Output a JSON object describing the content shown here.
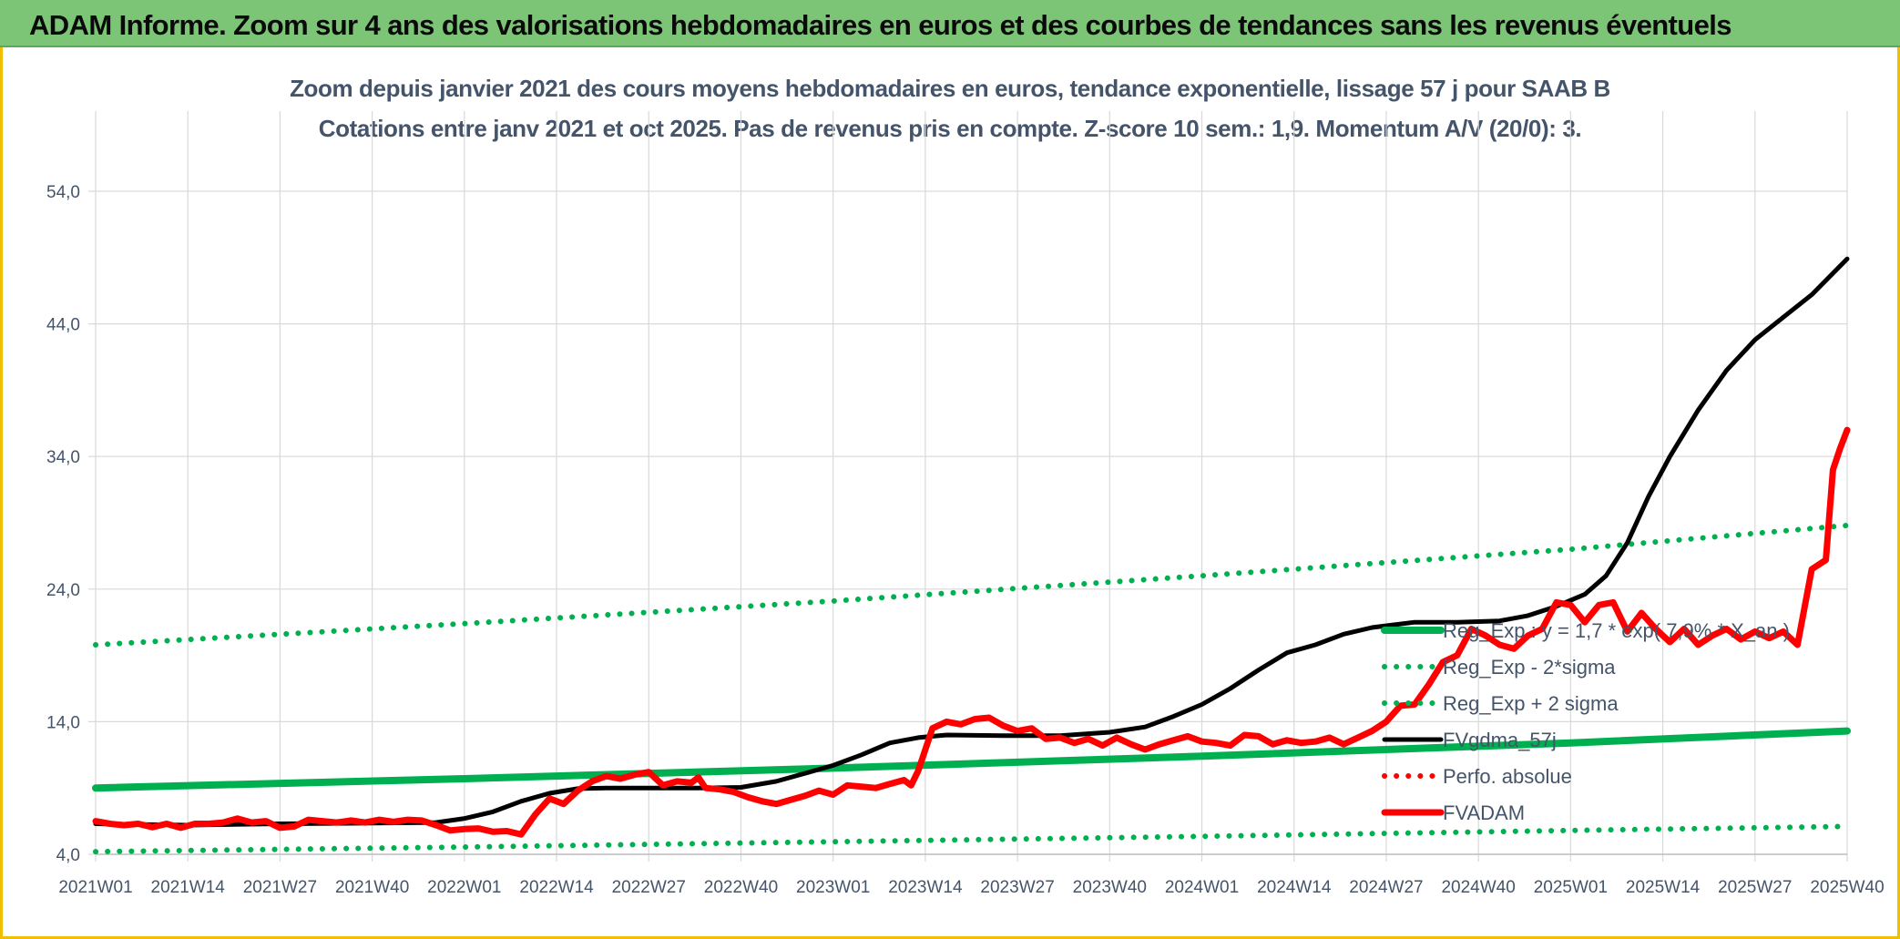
{
  "header": {
    "title": "ADAM Informe. Zoom sur 4 ans des valorisations hebdomadaires en euros et des courbes de tendances sans les revenus éventuels"
  },
  "colors": {
    "banner": "#7cc576",
    "frame": "#f0c000",
    "trend": "#00b050",
    "price": "#ff0000",
    "smooth": "#000000",
    "title_text": "#44546a",
    "grid": "#d9d9d9"
  },
  "chart_data": {
    "type": "line",
    "title": "Zoom depuis janvier 2021 des cours moyens hebdomadaires en euros, tendance exponentielle, lissage 57 j pour SAAB B",
    "subtitle": "Cotations entre janv 2021 et oct 2025. Pas de revenus pris en compte. Z-score 10 sem.: 1,9. Momentum A/V (20/0): 3.",
    "xlabel": "",
    "ylabel": "",
    "x_ticks": [
      "2021W01",
      "2021W14",
      "2021W27",
      "2021W40",
      "2022W01",
      "2022W14",
      "2022W27",
      "2022W40",
      "2023W01",
      "2023W14",
      "2023W27",
      "2023W40",
      "2024W01",
      "2024W14",
      "2024W27",
      "2024W40",
      "2025W01",
      "2025W14",
      "2025W27",
      "2025W40"
    ],
    "y_ticks": [
      "4,0",
      "14,0",
      "24,0",
      "34,0",
      "44,0",
      "54,0"
    ],
    "ylim": [
      4,
      54
    ],
    "x_range_weeks": [
      0,
      247
    ],
    "grid": true,
    "legend_position": "right-inside",
    "series": [
      {
        "name": "Reg_Exp : y = 1,7 * exp( 7,9% *  X_an )",
        "style": "solid-thick",
        "color": "#00b050",
        "points": [
          [
            0,
            9.0
          ],
          [
            52,
            9.7
          ],
          [
            104,
            10.5
          ],
          [
            156,
            11.4
          ],
          [
            208,
            12.4
          ],
          [
            247,
            13.3
          ]
        ]
      },
      {
        "name": "Reg_Exp - 2*sigma",
        "style": "dotted",
        "color": "#00b050",
        "points": [
          [
            0,
            4.2
          ],
          [
            52,
            4.55
          ],
          [
            104,
            4.95
          ],
          [
            156,
            5.35
          ],
          [
            208,
            5.8
          ],
          [
            247,
            6.1
          ]
        ]
      },
      {
        "name": "Reg_Exp + 2 sigma",
        "style": "dotted",
        "color": "#00b050",
        "points": [
          [
            0,
            19.8
          ],
          [
            52,
            21.4
          ],
          [
            104,
            23.1
          ],
          [
            156,
            25.0
          ],
          [
            208,
            27.0
          ],
          [
            247,
            28.8
          ]
        ]
      },
      {
        "name": "FVgdma_57j",
        "style": "solid",
        "color": "#000000",
        "points": [
          [
            0,
            6.3
          ],
          [
            13,
            6.2
          ],
          [
            26,
            6.3
          ],
          [
            39,
            6.35
          ],
          [
            48,
            6.4
          ],
          [
            52,
            6.7
          ],
          [
            56,
            7.2
          ],
          [
            60,
            8.0
          ],
          [
            64,
            8.6
          ],
          [
            68,
            8.95
          ],
          [
            72,
            9.0
          ],
          [
            78,
            9.0
          ],
          [
            85,
            9.0
          ],
          [
            91,
            9.05
          ],
          [
            96,
            9.5
          ],
          [
            100,
            10.1
          ],
          [
            104,
            10.7
          ],
          [
            108,
            11.5
          ],
          [
            112,
            12.4
          ],
          [
            116,
            12.8
          ],
          [
            120,
            13.0
          ],
          [
            128,
            12.95
          ],
          [
            136,
            12.95
          ],
          [
            143,
            13.2
          ],
          [
            148,
            13.6
          ],
          [
            152,
            14.4
          ],
          [
            156,
            15.3
          ],
          [
            160,
            16.5
          ],
          [
            164,
            17.9
          ],
          [
            168,
            19.2
          ],
          [
            172,
            19.8
          ],
          [
            176,
            20.6
          ],
          [
            180,
            21.1
          ],
          [
            186,
            21.5
          ],
          [
            192,
            21.5
          ],
          [
            198,
            21.6
          ],
          [
            202,
            22.0
          ],
          [
            206,
            22.7
          ],
          [
            210,
            23.6
          ],
          [
            213,
            25.0
          ],
          [
            216,
            27.5
          ],
          [
            219,
            31.0
          ],
          [
            222,
            34.0
          ],
          [
            226,
            37.5
          ],
          [
            230,
            40.5
          ],
          [
            234,
            42.8
          ],
          [
            238,
            44.5
          ],
          [
            242,
            46.2
          ],
          [
            247,
            48.9
          ]
        ]
      },
      {
        "name": "Perfo. absolue",
        "style": "dotted",
        "color": "#ff0000",
        "points": []
      },
      {
        "name": "FVADAM",
        "style": "solid-thick",
        "color": "#ff0000",
        "points": [
          [
            0,
            6.5
          ],
          [
            2,
            6.3
          ],
          [
            4,
            6.2
          ],
          [
            6,
            6.3
          ],
          [
            8,
            6.05
          ],
          [
            10,
            6.3
          ],
          [
            12,
            6.0
          ],
          [
            14,
            6.3
          ],
          [
            16,
            6.3
          ],
          [
            18,
            6.4
          ],
          [
            20,
            6.7
          ],
          [
            22,
            6.4
          ],
          [
            24,
            6.5
          ],
          [
            26,
            6.0
          ],
          [
            28,
            6.1
          ],
          [
            30,
            6.6
          ],
          [
            32,
            6.5
          ],
          [
            34,
            6.4
          ],
          [
            36,
            6.55
          ],
          [
            38,
            6.4
          ],
          [
            40,
            6.6
          ],
          [
            42,
            6.45
          ],
          [
            44,
            6.6
          ],
          [
            46,
            6.55
          ],
          [
            48,
            6.2
          ],
          [
            50,
            5.8
          ],
          [
            52,
            5.9
          ],
          [
            54,
            5.95
          ],
          [
            56,
            5.7
          ],
          [
            58,
            5.75
          ],
          [
            60,
            5.5
          ],
          [
            62,
            7.0
          ],
          [
            64,
            8.2
          ],
          [
            66,
            7.8
          ],
          [
            68,
            8.8
          ],
          [
            70,
            9.5
          ],
          [
            72,
            9.9
          ],
          [
            74,
            9.7
          ],
          [
            76,
            10.0
          ],
          [
            78,
            10.2
          ],
          [
            80,
            9.2
          ],
          [
            82,
            9.5
          ],
          [
            84,
            9.4
          ],
          [
            85,
            9.8
          ],
          [
            86,
            9.0
          ],
          [
            88,
            8.9
          ],
          [
            90,
            8.7
          ],
          [
            92,
            8.3
          ],
          [
            94,
            8.0
          ],
          [
            96,
            7.8
          ],
          [
            98,
            8.1
          ],
          [
            100,
            8.4
          ],
          [
            102,
            8.8
          ],
          [
            104,
            8.5
          ],
          [
            106,
            9.2
          ],
          [
            108,
            9.1
          ],
          [
            110,
            9.0
          ],
          [
            112,
            9.3
          ],
          [
            114,
            9.6
          ],
          [
            115,
            9.2
          ],
          [
            116,
            10.3
          ],
          [
            118,
            13.5
          ],
          [
            120,
            14.0
          ],
          [
            122,
            13.8
          ],
          [
            124,
            14.2
          ],
          [
            126,
            14.3
          ],
          [
            128,
            13.7
          ],
          [
            130,
            13.3
          ],
          [
            132,
            13.5
          ],
          [
            134,
            12.7
          ],
          [
            136,
            12.8
          ],
          [
            138,
            12.4
          ],
          [
            140,
            12.7
          ],
          [
            142,
            12.2
          ],
          [
            144,
            12.8
          ],
          [
            146,
            12.3
          ],
          [
            148,
            11.9
          ],
          [
            150,
            12.3
          ],
          [
            152,
            12.6
          ],
          [
            154,
            12.9
          ],
          [
            156,
            12.5
          ],
          [
            158,
            12.4
          ],
          [
            160,
            12.2
          ],
          [
            162,
            13.0
          ],
          [
            164,
            12.9
          ],
          [
            166,
            12.3
          ],
          [
            168,
            12.6
          ],
          [
            170,
            12.4
          ],
          [
            172,
            12.5
          ],
          [
            174,
            12.8
          ],
          [
            176,
            12.3
          ],
          [
            178,
            12.8
          ],
          [
            180,
            13.3
          ],
          [
            182,
            14.0
          ],
          [
            184,
            15.2
          ],
          [
            186,
            15.3
          ],
          [
            188,
            16.8
          ],
          [
            190,
            18.5
          ],
          [
            192,
            19.0
          ],
          [
            194,
            21.0
          ],
          [
            196,
            20.5
          ],
          [
            198,
            19.8
          ],
          [
            200,
            19.5
          ],
          [
            202,
            20.5
          ],
          [
            204,
            21.0
          ],
          [
            206,
            23.0
          ],
          [
            208,
            22.8
          ],
          [
            210,
            21.5
          ],
          [
            212,
            22.8
          ],
          [
            214,
            23.0
          ],
          [
            216,
            20.8
          ],
          [
            218,
            22.2
          ],
          [
            220,
            21.0
          ],
          [
            222,
            20.0
          ],
          [
            224,
            21.0
          ],
          [
            226,
            19.8
          ],
          [
            228,
            20.5
          ],
          [
            230,
            21.0
          ],
          [
            232,
            20.2
          ],
          [
            234,
            20.8
          ],
          [
            236,
            20.3
          ],
          [
            238,
            20.8
          ],
          [
            240,
            19.8
          ],
          [
            242,
            25.5
          ],
          [
            244,
            26.2
          ],
          [
            245,
            33.0
          ],
          [
            246,
            34.6
          ],
          [
            247,
            36.0
          ]
        ]
      }
    ],
    "legend": [
      {
        "name": "Reg_Exp : y = 1,7 * exp( 7,9% *  X_an )",
        "style": "solid-thick",
        "color": "#00b050"
      },
      {
        "name": "Reg_Exp - 2*sigma",
        "style": "dotted",
        "color": "#00b050"
      },
      {
        "name": "Reg_Exp + 2 sigma",
        "style": "dotted",
        "color": "#00b050"
      },
      {
        "name": "FVgdma_57j",
        "style": "solid",
        "color": "#000000"
      },
      {
        "name": "Perfo. absolue",
        "style": "dotted",
        "color": "#ff0000"
      },
      {
        "name": "FVADAM",
        "style": "solid-thick",
        "color": "#ff0000"
      }
    ]
  }
}
